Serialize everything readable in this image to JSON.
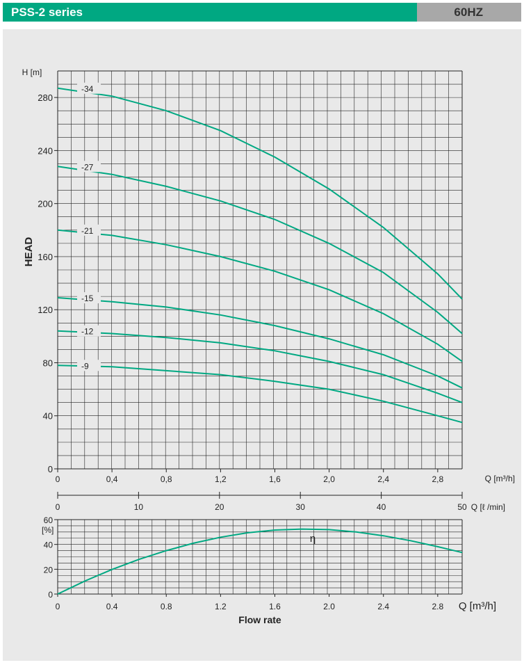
{
  "header": {
    "title": "PSS-2 series",
    "frequency": "60HZ"
  },
  "colors": {
    "header_bar": "#00a882",
    "header_tag": "#a8a8a8",
    "curve": "#00a882",
    "panel": "#e9e9e9",
    "grid": "#222222"
  },
  "chart_data": [
    {
      "type": "line",
      "title": "",
      "ylabel": "HEAD",
      "yunit": "H [m]",
      "xunit": "Q [m³/h]",
      "xlim": [
        0,
        2.98
      ],
      "ylim": [
        0,
        300
      ],
      "xticks": [
        0,
        0.4,
        0.8,
        1.2,
        1.6,
        2.0,
        2.4,
        2.8
      ],
      "xtick_labels": [
        "0",
        "0,4",
        "0,8",
        "1,2",
        "1,6",
        "2,0",
        "2,4",
        "2,8"
      ],
      "yticks": [
        0,
        40,
        80,
        120,
        160,
        200,
        240,
        280
      ],
      "ytick_labels": [
        "0",
        "40",
        "80",
        "120",
        "160",
        "200",
        "240",
        "280"
      ],
      "grid": true,
      "secondary_xaxis": {
        "unit": "Q [ℓ /min]",
        "ticks": [
          0,
          10,
          20,
          30,
          40,
          50
        ],
        "tick_labels": [
          "0",
          "10",
          "20",
          "30",
          "40",
          "50"
        ]
      },
      "series": [
        {
          "name": "-34",
          "x": [
            0,
            0.4,
            0.8,
            1.2,
            1.6,
            2.0,
            2.4,
            2.8,
            2.98
          ],
          "values": [
            287,
            281,
            270,
            255,
            235,
            211,
            182,
            147,
            128
          ]
        },
        {
          "name": "-27",
          "x": [
            0,
            0.4,
            0.8,
            1.2,
            1.6,
            2.0,
            2.4,
            2.8,
            2.98
          ],
          "values": [
            228,
            222,
            213,
            202,
            188,
            170,
            148,
            118,
            102
          ]
        },
        {
          "name": "-21",
          "x": [
            0,
            0.4,
            0.8,
            1.2,
            1.6,
            2.0,
            2.4,
            2.8,
            2.98
          ],
          "values": [
            180,
            176,
            169,
            160,
            149,
            135,
            117,
            94,
            81
          ]
        },
        {
          "name": "-15",
          "x": [
            0,
            0.4,
            0.8,
            1.2,
            1.6,
            2.0,
            2.4,
            2.8,
            2.98
          ],
          "values": [
            129,
            126,
            122,
            116,
            108,
            98,
            86,
            70,
            61
          ]
        },
        {
          "name": "-12",
          "x": [
            0,
            0.4,
            0.8,
            1.2,
            1.6,
            2.0,
            2.4,
            2.8,
            2.98
          ],
          "values": [
            104,
            102,
            99,
            95,
            89,
            81,
            71,
            57,
            50
          ]
        },
        {
          "name": "-9",
          "x": [
            0,
            0.4,
            0.8,
            1.2,
            1.6,
            2.0,
            2.4,
            2.8,
            2.98
          ],
          "values": [
            78,
            77,
            74,
            71,
            66,
            60,
            51,
            40,
            35
          ]
        }
      ]
    },
    {
      "type": "line",
      "title": "",
      "xlabel": "Flow rate",
      "xunit": "Q [m³/h]",
      "yunit": "[%]",
      "xlim": [
        0,
        2.98
      ],
      "ylim": [
        0,
        60
      ],
      "xticks": [
        0,
        0.4,
        0.8,
        1.2,
        1.6,
        2.0,
        2.4,
        2.8
      ],
      "xtick_labels": [
        "0",
        "0.4",
        "0.8",
        "1.2",
        "1.6",
        "2.0",
        "2.4",
        "2.8"
      ],
      "yticks": [
        0,
        20,
        40,
        60
      ],
      "ytick_labels": [
        "0",
        "20",
        "40",
        "60"
      ],
      "grid": true,
      "series": [
        {
          "name": "η",
          "x": [
            0,
            0.2,
            0.4,
            0.6,
            0.8,
            1.0,
            1.2,
            1.4,
            1.6,
            1.8,
            2.0,
            2.2,
            2.4,
            2.6,
            2.8,
            2.98
          ],
          "values": [
            0,
            10.5,
            19.8,
            28,
            35,
            41,
            45.8,
            49.4,
            51.6,
            52.4,
            51.9,
            50,
            47,
            43,
            38.2,
            33.5
          ]
        }
      ]
    }
  ]
}
